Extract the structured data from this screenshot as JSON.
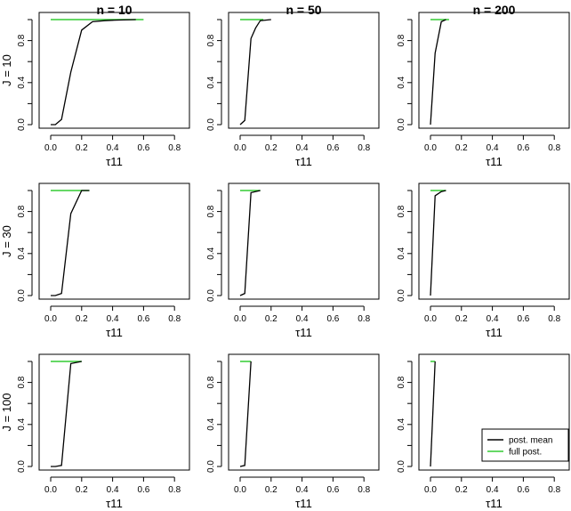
{
  "chart_data": {
    "type": "line",
    "layout": "3x3 panel grid",
    "column_titles": [
      "n = 10",
      "n = 50",
      "n = 200"
    ],
    "row_labels": [
      "J = 10",
      "J = 30",
      "J = 100"
    ],
    "xlabel": "τ11",
    "xlim": [
      0,
      0.85
    ],
    "ylim": [
      0,
      1
    ],
    "x_ticks": [
      "0.0",
      "0.2",
      "0.4",
      "0.6",
      "0.8"
    ],
    "y_ticks": [
      "0.0",
      "0.4",
      "0.8"
    ],
    "legend": {
      "placement": "bottom-right of last panel",
      "entries": [
        {
          "label": "post. mean",
          "color": "#000000"
        },
        {
          "label": "full post.",
          "color": "#33cc33"
        }
      ]
    },
    "colors": {
      "post_mean": "#000000",
      "full_post": "#33cc33"
    },
    "panels": [
      {
        "row": 0,
        "col": 0,
        "post_mean": {
          "x": [
            0,
            0.03,
            0.07,
            0.13,
            0.2,
            0.27,
            0.35,
            0.42,
            0.55
          ],
          "y": [
            0,
            0,
            0.05,
            0.5,
            0.9,
            0.98,
            0.99,
            0.995,
            1.0
          ]
        },
        "full_post": {
          "x": [
            0,
            0.6
          ],
          "y": [
            1.0,
            1.0
          ]
        }
      },
      {
        "row": 0,
        "col": 1,
        "post_mean": {
          "x": [
            0,
            0.03,
            0.07,
            0.1,
            0.13,
            0.2
          ],
          "y": [
            0,
            0.04,
            0.82,
            0.92,
            0.99,
            1.0
          ]
        },
        "full_post": {
          "x": [
            0,
            0.15
          ],
          "y": [
            1.0,
            1.0
          ]
        }
      },
      {
        "row": 0,
        "col": 2,
        "post_mean": {
          "x": [
            0,
            0.03,
            0.07,
            0.1
          ],
          "y": [
            0,
            0.68,
            0.98,
            1.0
          ]
        },
        "full_post": {
          "x": [
            0,
            0.12
          ],
          "y": [
            1.0,
            1.0
          ]
        }
      },
      {
        "row": 1,
        "col": 0,
        "post_mean": {
          "x": [
            0,
            0.03,
            0.07,
            0.13,
            0.2,
            0.25
          ],
          "y": [
            0,
            0,
            0.02,
            0.78,
            1.0,
            1.0
          ]
        },
        "full_post": {
          "x": [
            0,
            0.25
          ],
          "y": [
            1.0,
            1.0
          ]
        }
      },
      {
        "row": 1,
        "col": 1,
        "post_mean": {
          "x": [
            0,
            0.03,
            0.07,
            0.13
          ],
          "y": [
            0,
            0.02,
            0.98,
            1.0
          ]
        },
        "full_post": {
          "x": [
            0,
            0.13
          ],
          "y": [
            1.0,
            1.0
          ]
        }
      },
      {
        "row": 1,
        "col": 2,
        "post_mean": {
          "x": [
            0,
            0.03,
            0.07,
            0.1
          ],
          "y": [
            0,
            0.95,
            0.99,
            1.0
          ]
        },
        "full_post": {
          "x": [
            0,
            0.1
          ],
          "y": [
            1.0,
            1.0
          ]
        }
      },
      {
        "row": 2,
        "col": 0,
        "post_mean": {
          "x": [
            0,
            0.03,
            0.07,
            0.13,
            0.2
          ],
          "y": [
            0,
            0,
            0.01,
            0.98,
            1.0
          ]
        },
        "full_post": {
          "x": [
            0,
            0.2
          ],
          "y": [
            1.0,
            1.0
          ]
        }
      },
      {
        "row": 2,
        "col": 1,
        "post_mean": {
          "x": [
            0,
            0.03,
            0.07
          ],
          "y": [
            0,
            0.01,
            1.0
          ]
        },
        "full_post": {
          "x": [
            0,
            0.07
          ],
          "y": [
            1.0,
            1.0
          ]
        }
      },
      {
        "row": 2,
        "col": 2,
        "post_mean": {
          "x": [
            0,
            0.03
          ],
          "y": [
            0,
            1.0
          ]
        },
        "full_post": {
          "x": [
            0,
            0.03
          ],
          "y": [
            1.0,
            1.0
          ]
        }
      }
    ]
  }
}
